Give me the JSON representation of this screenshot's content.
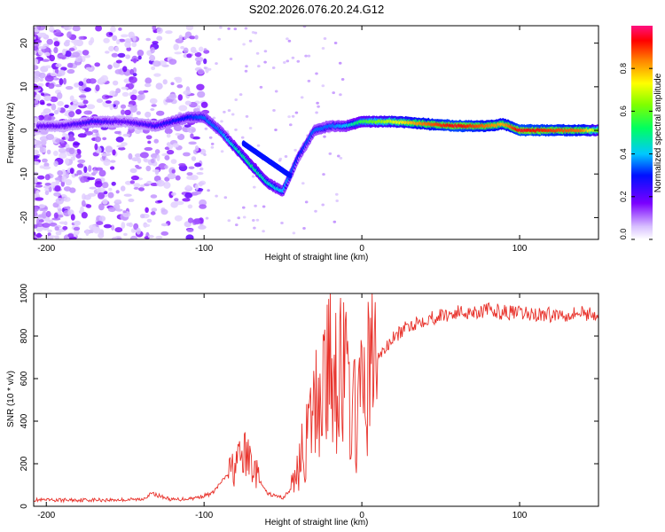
{
  "title": "S202.2026.076.20.24.G12",
  "chart_data": [
    {
      "type": "heatmap",
      "xlabel": "Height of straight line (km)",
      "ylabel": "Frequency (Hz)",
      "xlim": [
        -208,
        150
      ],
      "ylim": [
        -25,
        24
      ],
      "xticks": [
        -200,
        -100,
        0,
        100
      ],
      "yticks": [
        -20,
        -10,
        0,
        10,
        20
      ],
      "colorbar": {
        "label": "Normalized spectral amplitude",
        "range": [
          0.0,
          1.0
        ],
        "ticks": [
          0.0,
          0.2,
          0.4,
          0.6,
          0.8
        ],
        "tick_labels": [
          "0.0",
          "0.2",
          "0.4",
          "0.6",
          "0.8"
        ]
      },
      "ridge": {
        "x": [
          -205,
          -190,
          -170,
          -150,
          -130,
          -110,
          -100,
          -90,
          -80,
          -70,
          -60,
          -50,
          -40,
          -30,
          -20,
          -10,
          0,
          20,
          40,
          60,
          80,
          90,
          100,
          120,
          140,
          150
        ],
        "frequency": [
          1,
          1,
          2,
          2,
          1,
          3,
          3,
          0,
          -4,
          -8,
          -12,
          -14,
          -6,
          0,
          1,
          1,
          2,
          2,
          1.5,
          1,
          1,
          1.5,
          0,
          0,
          0,
          0
        ],
        "amplitude": [
          0.2,
          0.2,
          0.25,
          0.2,
          0.25,
          0.3,
          0.35,
          0.35,
          0.45,
          0.5,
          0.45,
          0.4,
          0.3,
          0.35,
          0.35,
          0.4,
          0.55,
          0.7,
          0.85,
          0.95,
          0.85,
          0.8,
          0.95,
          0.9,
          0.85,
          0.6
        ]
      }
    },
    {
      "type": "line",
      "xlabel": "Height of straight line (km)",
      "ylabel": "SNR (10 * v/v)",
      "xlim": [
        -208,
        150
      ],
      "ylim": [
        0,
        1000
      ],
      "xticks": [
        -200,
        -100,
        0,
        100
      ],
      "yticks": [
        0,
        200,
        400,
        600,
        800,
        1000
      ],
      "series": [
        {
          "name": "SNR",
          "color": "#e8312a",
          "x": [
            -208,
            -200,
            -180,
            -160,
            -140,
            -133,
            -120,
            -105,
            -95,
            -85,
            -75,
            -70,
            -65,
            -60,
            -50,
            -45,
            -40,
            -35,
            -30,
            -25,
            -20,
            -15,
            -10,
            -5,
            0,
            5,
            10,
            15,
            20,
            30,
            40,
            60,
            80,
            100,
            120,
            140,
            150
          ],
          "y": [
            30,
            28,
            30,
            30,
            32,
            60,
            30,
            40,
            60,
            150,
            240,
            210,
            120,
            60,
            40,
            80,
            200,
            300,
            450,
            600,
            650,
            700,
            580,
            420,
            500,
            650,
            700,
            740,
            790,
            850,
            880,
            910,
            920,
            905,
            900,
            910,
            900
          ]
        }
      ]
    }
  ]
}
